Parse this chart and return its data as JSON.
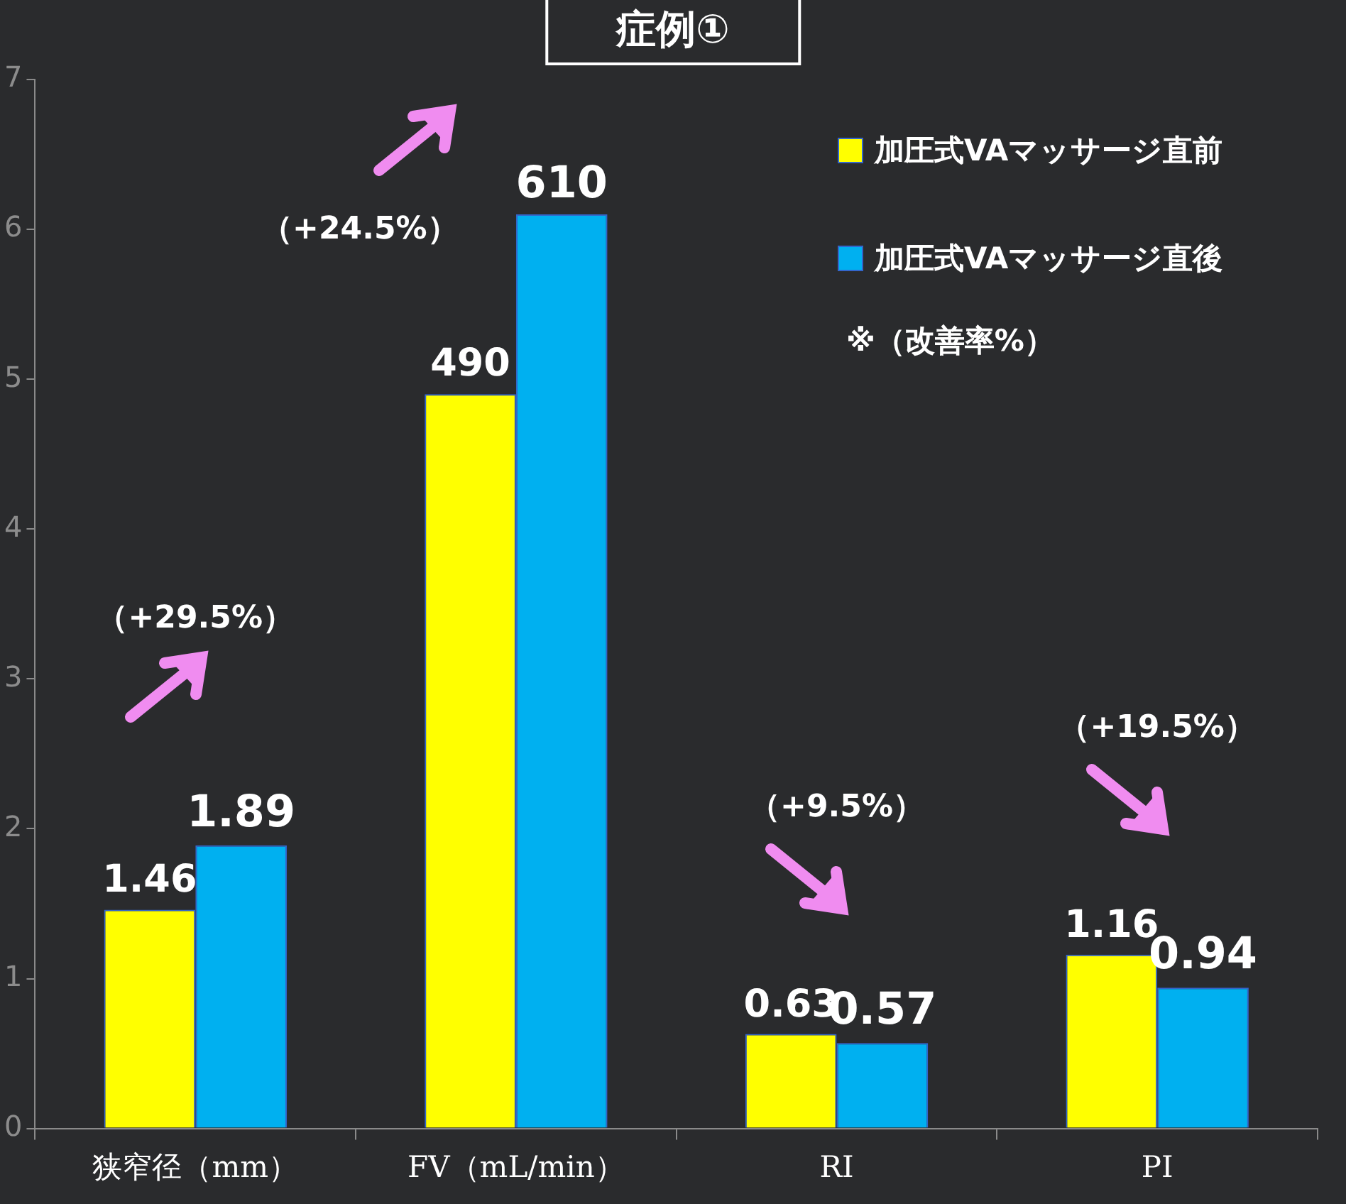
{
  "chart_data": {
    "type": "bar",
    "title": "症例①",
    "categories": [
      "狭窄径（mm）",
      "FV（mL/min）",
      "RI",
      "PI"
    ],
    "series": [
      {
        "name": "加圧式VAマッサージ直前",
        "color": "#ffff00",
        "values": [
          1.46,
          4.9,
          0.63,
          1.16
        ],
        "value_labels": [
          "1.46",
          null,
          "0.63",
          "1.16"
        ]
      },
      {
        "name": "加圧式VAマッサージ直後",
        "color": "#00b0f0",
        "values": [
          1.89,
          6.1,
          0.57,
          0.94
        ],
        "value_labels": [
          "1.89",
          null,
          "0.57",
          "0.94"
        ]
      }
    ],
    "ylim": [
      0,
      7
    ],
    "yticks": [
      0,
      1,
      2,
      3,
      4,
      5,
      6,
      7
    ],
    "grid": false,
    "legend": "top right",
    "annotations": [
      "（+29.5%）",
      "（+24.5%）",
      "（+9.5%）",
      "（+19.5%）",
      "※（改善率%）",
      {
        "text": "490",
        "x": "FV（mL/min）",
        "y": 4.9
      },
      {
        "text": "610",
        "x": "FV（mL/min）",
        "y": 6.1
      }
    ]
  }
}
